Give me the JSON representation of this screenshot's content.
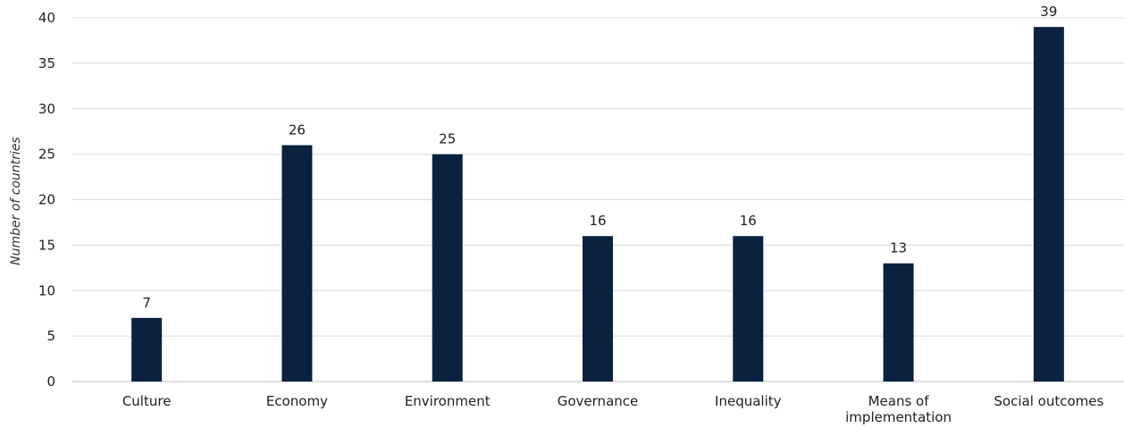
{
  "chart_data": {
    "type": "bar",
    "title": "",
    "xlabel": "",
    "ylabel": "Number of countries",
    "ylim": [
      0,
      40
    ],
    "yticks": [
      0,
      5,
      10,
      15,
      20,
      25,
      30,
      35,
      40
    ],
    "grid": true,
    "legend": "none",
    "bar_color": "#0a2240",
    "categories": [
      [
        "Culture"
      ],
      [
        "Economy"
      ],
      [
        "Environment"
      ],
      [
        "Governance"
      ],
      [
        "Inequality"
      ],
      [
        "Means of",
        "implementation"
      ],
      [
        "Social outcomes"
      ]
    ],
    "values": [
      7,
      26,
      25,
      16,
      16,
      13,
      39
    ]
  }
}
